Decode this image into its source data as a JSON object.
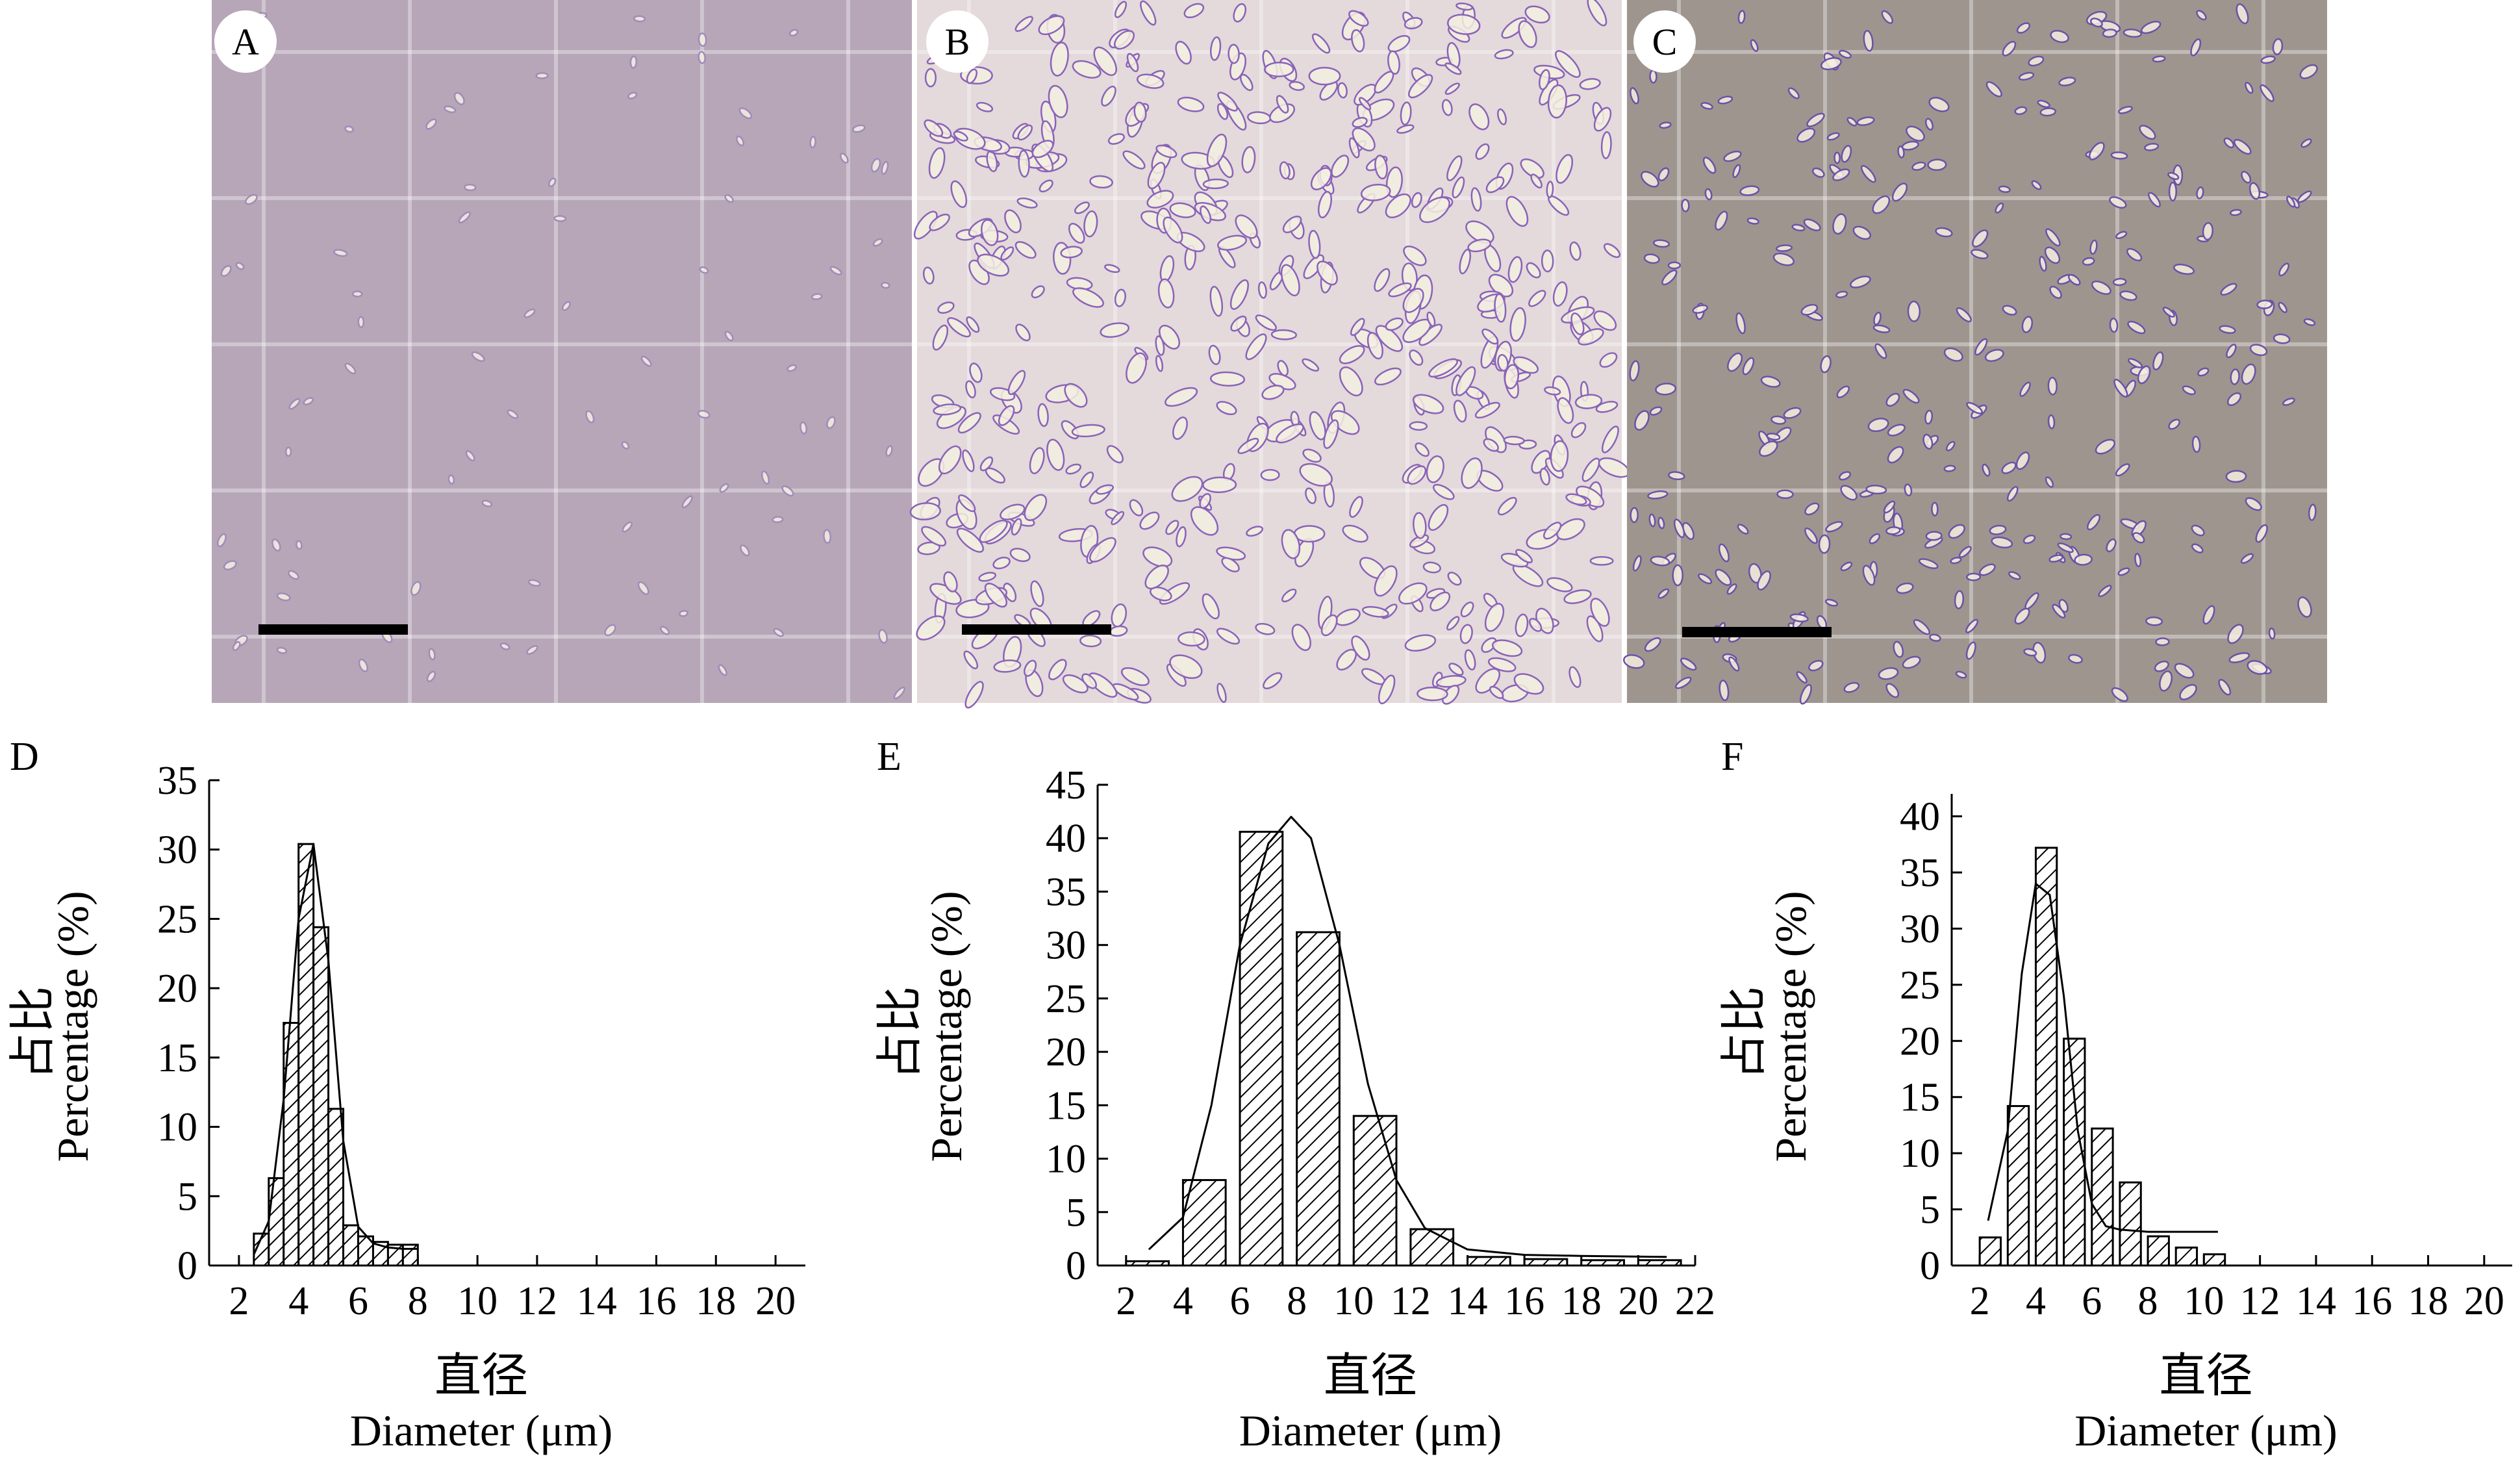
{
  "photo_panels": [
    {
      "label": "A",
      "tint": "#b6a6b7",
      "cell_color": "#a08bbb"
    },
    {
      "label": "B",
      "tint": "#e4d9db",
      "cell_color": "#8a63b8"
    },
    {
      "label": "C",
      "tint": "#9e958f",
      "cell_color": "#6c51a6"
    }
  ],
  "chart_data": [
    {
      "panel": "D",
      "type": "bar",
      "ylabel_cn": "占比",
      "ylabel_en": "Percentage (%)",
      "xlabel_cn": "直径",
      "xlabel_en": "Diameter (μm)",
      "xlim": [
        1,
        21
      ],
      "ylim": [
        0,
        35
      ],
      "xticks": [
        "2",
        "4",
        "6",
        "8",
        "10",
        "12",
        "14",
        "16",
        "18",
        "20"
      ],
      "yticks": [
        "0",
        "5",
        "10",
        "15",
        "20",
        "25",
        "30",
        "35"
      ],
      "bin_width": 0.5,
      "bins": [
        2.5,
        3.0,
        3.5,
        4.0,
        4.5,
        5.0,
        5.5,
        6.0,
        6.5,
        7.0,
        7.5
      ],
      "values": [
        2.3,
        6.3,
        17.5,
        30.4,
        24.4,
        11.3,
        2.9,
        2.1,
        1.7,
        1.5,
        1.5
      ],
      "fit_curve": {
        "x": [
          2.5,
          3.0,
          3.5,
          4.0,
          4.5,
          5.0,
          5.5,
          6.0,
          6.5,
          7.0,
          7.5,
          8.0
        ],
        "y": [
          0.8,
          3.2,
          12.0,
          25.0,
          30.4,
          22.0,
          9.0,
          2.8,
          1.6,
          1.3,
          1.2,
          1.2
        ]
      }
    },
    {
      "panel": "E",
      "type": "bar",
      "ylabel_cn": "占比",
      "ylabel_en": "Percentage (%)",
      "xlabel_cn": "直径",
      "xlabel_en": "Diameter (μm)",
      "xlim": [
        1,
        22
      ],
      "ylim": [
        0,
        45
      ],
      "xticks": [
        "2",
        "4",
        "6",
        "8",
        "10",
        "12",
        "14",
        "16",
        "18",
        "20",
        "22"
      ],
      "yticks": [
        "0",
        "5",
        "10",
        "15",
        "20",
        "25",
        "30",
        "35",
        "40",
        "45"
      ],
      "bin_width": 1.5,
      "bins": [
        2.0,
        4.0,
        6.0,
        8.0,
        10.0,
        12.0,
        14.0,
        16.0,
        18.0,
        20.0
      ],
      "values": [
        0.4,
        8.0,
        40.6,
        31.2,
        14.0,
        3.4,
        0.8,
        0.6,
        0.5,
        0.5
      ],
      "fit_curve": {
        "x": [
          2.8,
          4.0,
          5.0,
          6.0,
          7.0,
          7.8,
          8.5,
          9.5,
          10.5,
          11.5,
          12.5,
          14.0,
          16.0,
          18.0,
          21.0
        ],
        "y": [
          1.5,
          4.5,
          15.0,
          30.0,
          39.5,
          42.0,
          40.0,
          30.0,
          17.0,
          8.0,
          3.5,
          1.5,
          1.0,
          0.9,
          0.8
        ]
      }
    },
    {
      "panel": "F",
      "type": "bar",
      "ylabel_cn": "占比",
      "ylabel_en": "Percentage (%)",
      "xlabel_cn": "直径",
      "xlabel_en": "Diameter (μm)",
      "xlim": [
        1,
        21
      ],
      "ylim": [
        0,
        42
      ],
      "xticks": [
        "2",
        "4",
        "6",
        "8",
        "10",
        "12",
        "14",
        "16",
        "18",
        "20"
      ],
      "yticks": [
        "0",
        "5",
        "10",
        "15",
        "20",
        "25",
        "30",
        "35",
        "40"
      ],
      "bin_width": 0.75,
      "bins": [
        2.0,
        3.0,
        4.0,
        5.0,
        6.0,
        7.0,
        8.0,
        9.0,
        10.0
      ],
      "values": [
        2.5,
        14.2,
        37.2,
        20.2,
        12.2,
        7.4,
        2.6,
        1.6,
        1.0
      ],
      "fit_curve": {
        "x": [
          2.3,
          3.0,
          3.5,
          4.0,
          4.5,
          5.0,
          5.5,
          6.0,
          6.5,
          7.0,
          8.0,
          9.0,
          10.5
        ],
        "y": [
          4.0,
          12.0,
          26.0,
          34.0,
          33.0,
          24.0,
          12.0,
          5.5,
          3.5,
          3.2,
          3.0,
          3.0,
          3.0
        ]
      }
    }
  ]
}
